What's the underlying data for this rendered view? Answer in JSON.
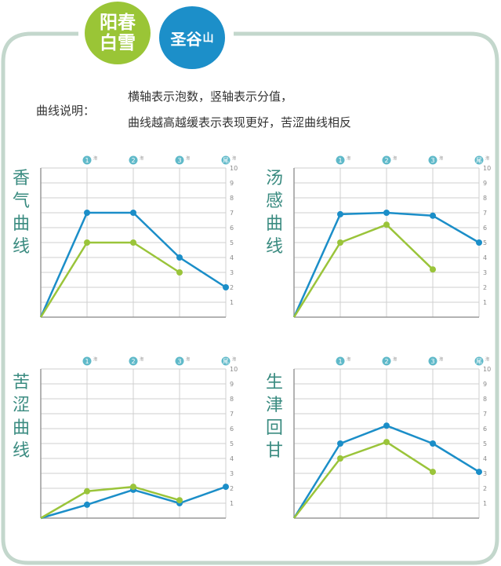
{
  "header": {
    "badge_left": [
      "阳春",
      "白雪"
    ],
    "badge_right": [
      "圣谷",
      "山"
    ],
    "legend_label": "曲线说明：",
    "legend_lines": [
      "横轴表示泡数，竖轴表示分值，",
      "曲线越高越缓表示表现更好，苦涩曲线相反"
    ]
  },
  "colors": {
    "blue": "#1b8ec8",
    "green": "#9ac43a",
    "frame": "#c3d7cc",
    "grid": "#cfcfcf",
    "axis": "#9a9a9a",
    "title": "#3a8b80",
    "marker": "#5fb9c9"
  },
  "chart_data": [
    {
      "type": "line",
      "title": "香气曲线",
      "x": [
        "0",
        "1",
        "2",
        "3",
        "尾"
      ],
      "x_tick_suffix": "泡",
      "ylim": [
        0,
        10
      ],
      "y_ticks": [
        "1",
        "2",
        "3",
        "4",
        "5",
        "6",
        "7",
        "8",
        "9",
        "10"
      ],
      "series": [
        {
          "color": "#1b8ec8",
          "values": [
            0,
            7,
            7,
            4,
            2
          ]
        },
        {
          "color": "#9ac43a",
          "values": [
            0,
            5,
            5,
            3,
            null
          ]
        }
      ]
    },
    {
      "type": "line",
      "title": "汤感曲线",
      "x": [
        "0",
        "1",
        "2",
        "3",
        "尾"
      ],
      "x_tick_suffix": "泡",
      "ylim": [
        0,
        10
      ],
      "y_ticks": [
        "1",
        "2",
        "3",
        "4",
        "5",
        "6",
        "7",
        "8",
        "9",
        "10"
      ],
      "series": [
        {
          "color": "#1b8ec8",
          "values": [
            0,
            6.9,
            7,
            6.8,
            5
          ]
        },
        {
          "color": "#9ac43a",
          "values": [
            0,
            5,
            6.2,
            3.2,
            null
          ]
        }
      ]
    },
    {
      "type": "line",
      "title": "苦涩曲线",
      "x": [
        "0",
        "1",
        "2",
        "3",
        "尾"
      ],
      "x_tick_suffix": "泡",
      "ylim": [
        0,
        10
      ],
      "y_ticks": [
        "1",
        "2",
        "3",
        "4",
        "5",
        "6",
        "7",
        "8",
        "9",
        "10"
      ],
      "series": [
        {
          "color": "#1b8ec8",
          "values": [
            0,
            0.9,
            1.9,
            1.0,
            2.1
          ]
        },
        {
          "color": "#9ac43a",
          "values": [
            0,
            1.8,
            2.1,
            1.2,
            null
          ]
        }
      ]
    },
    {
      "type": "line",
      "title": "生津回甘",
      "x": [
        "0",
        "1",
        "2",
        "3",
        "尾"
      ],
      "x_tick_suffix": "泡",
      "ylim": [
        0,
        10
      ],
      "y_ticks": [
        "1",
        "2",
        "3",
        "4",
        "5",
        "6",
        "7",
        "8",
        "9",
        "10"
      ],
      "series": [
        {
          "color": "#1b8ec8",
          "values": [
            0,
            5,
            6.2,
            5,
            3.1
          ]
        },
        {
          "color": "#9ac43a",
          "values": [
            0,
            4,
            5.1,
            3.1,
            null
          ]
        }
      ]
    }
  ]
}
